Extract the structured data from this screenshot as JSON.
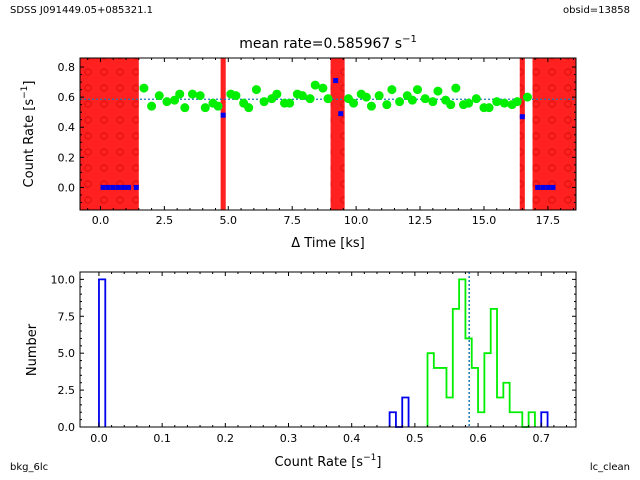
{
  "corners": {
    "source": "SDSS J091449.05+085321.1",
    "obsid": "obsid=13858",
    "bkg_label": "bkg_6lc",
    "clean_label": "lc_clean"
  },
  "colors": {
    "source": "#00ee00",
    "background": "#0000ee",
    "gti": "#ff2020",
    "mean": "#1f77b4"
  },
  "chart_data": [
    {
      "type": "scatter",
      "title": "mean rate=0.585967 s",
      "title_sup": "−1",
      "xlabel": "Δ Time [ks]",
      "ylabel": "Count Rate [s",
      "ylabel_sup": "−1",
      "ylabel_end": "]",
      "xlim": [
        -0.8,
        18.6
      ],
      "ylim": [
        -0.15,
        0.86
      ],
      "xticks": [
        0.0,
        2.5,
        5.0,
        7.5,
        10.0,
        12.5,
        15.0,
        17.5
      ],
      "xtick_labels": [
        "0.0",
        "2.5",
        "5.0",
        "7.5",
        "10.0",
        "12.5",
        "15.0",
        "17.5"
      ],
      "yticks": [
        0.0,
        0.2,
        0.4,
        0.6,
        0.8
      ],
      "ytick_labels": [
        "0.0",
        "0.2",
        "0.4",
        "0.6",
        "0.8"
      ],
      "mean_rate": 0.585967,
      "bad_intervals": [
        [
          -0.8,
          1.5
        ],
        [
          4.7,
          4.9
        ],
        [
          9.0,
          9.55
        ],
        [
          16.4,
          16.6
        ],
        [
          16.9,
          18.6
        ]
      ],
      "series": [
        {
          "name": "source",
          "x": [
            1.7,
            2.0,
            2.3,
            2.6,
            2.9,
            3.1,
            3.3,
            3.6,
            3.9,
            4.1,
            4.4,
            4.6,
            5.1,
            5.3,
            5.6,
            5.8,
            6.1,
            6.4,
            6.7,
            6.9,
            7.2,
            7.4,
            7.7,
            7.9,
            8.2,
            8.4,
            8.7,
            8.9,
            9.7,
            9.9,
            10.2,
            10.4,
            10.6,
            10.9,
            11.2,
            11.4,
            11.7,
            12.0,
            12.2,
            12.4,
            12.7,
            13.0,
            13.2,
            13.5,
            13.7,
            13.9,
            14.2,
            14.4,
            14.7,
            15.0,
            15.2,
            15.5,
            15.8,
            16.1,
            16.3,
            16.7
          ],
          "y": [
            0.66,
            0.54,
            0.61,
            0.57,
            0.58,
            0.62,
            0.53,
            0.62,
            0.61,
            0.53,
            0.56,
            0.54,
            0.62,
            0.61,
            0.56,
            0.53,
            0.65,
            0.57,
            0.59,
            0.62,
            0.56,
            0.56,
            0.62,
            0.61,
            0.59,
            0.68,
            0.66,
            0.59,
            0.59,
            0.56,
            0.62,
            0.6,
            0.54,
            0.61,
            0.55,
            0.65,
            0.57,
            0.61,
            0.58,
            0.65,
            0.59,
            0.57,
            0.64,
            0.58,
            0.55,
            0.66,
            0.55,
            0.56,
            0.59,
            0.53,
            0.53,
            0.57,
            0.56,
            0.55,
            0.57,
            0.6
          ]
        },
        {
          "name": "background",
          "x": [
            0.1,
            0.3,
            0.5,
            0.7,
            0.9,
            1.1,
            1.4,
            4.8,
            9.2,
            9.4,
            16.5,
            17.1,
            17.3,
            17.5,
            17.7
          ],
          "y": [
            0.0,
            0.0,
            0.0,
            0.0,
            0.0,
            0.0,
            0.0,
            0.48,
            0.71,
            0.49,
            0.47,
            0.0,
            0.0,
            0.0,
            0.0
          ]
        }
      ]
    },
    {
      "type": "histogram",
      "xlabel": "Count Rate [s",
      "xlabel_sup": "−1",
      "xlabel_end": "]",
      "ylabel": "Number",
      "xlim": [
        -0.03,
        0.755
      ],
      "ylim": [
        0,
        10.5
      ],
      "xticks": [
        0.0,
        0.1,
        0.2,
        0.3,
        0.4,
        0.5,
        0.6,
        0.7
      ],
      "xtick_labels": [
        "0.0",
        "0.1",
        "0.2",
        "0.3",
        "0.4",
        "0.5",
        "0.6",
        "0.7"
      ],
      "yticks": [
        0.0,
        2.5,
        5.0,
        7.5,
        10.0
      ],
      "ytick_labels": [
        "0.0",
        "2.5",
        "5.0",
        "7.5",
        "10.0"
      ],
      "bin_width": 0.01,
      "mean_rate": 0.585967,
      "series": [
        {
          "name": "background",
          "bin_starts": [
            0.0,
            0.46,
            0.47,
            0.48,
            0.7
          ],
          "counts": [
            10,
            1,
            0,
            2,
            1
          ]
        },
        {
          "name": "source",
          "bin_starts": [
            0.52,
            0.53,
            0.54,
            0.55,
            0.56,
            0.57,
            0.58,
            0.59,
            0.6,
            0.61,
            0.62,
            0.63,
            0.64,
            0.65,
            0.66,
            0.67,
            0.68
          ],
          "counts": [
            5,
            4,
            4,
            2,
            8,
            10,
            6,
            4,
            1,
            5,
            8,
            2,
            3,
            1,
            1,
            0,
            1
          ]
        }
      ]
    }
  ]
}
